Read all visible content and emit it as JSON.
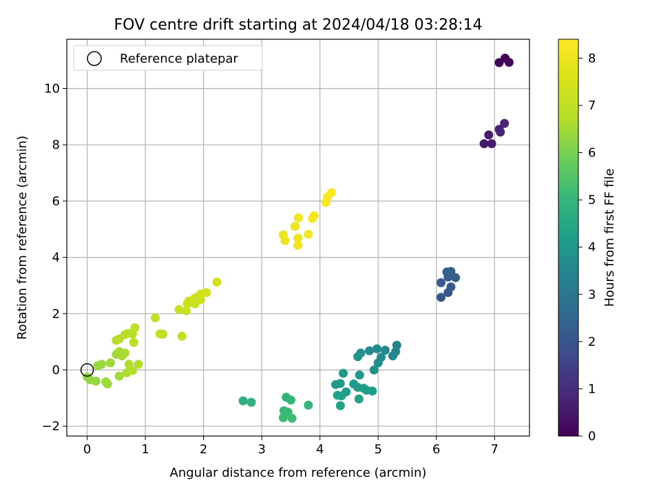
{
  "chart_data": {
    "type": "scatter",
    "title": "FOV centre drift starting at 2024/04/18 03:28:14",
    "xlabel": "Angular distance from reference (arcmin)",
    "ylabel": "Rotation from reference (arcmin)",
    "xlim": [
      -0.35,
      7.6
    ],
    "ylim": [
      -2.35,
      11.75
    ],
    "xticks": [
      0,
      1,
      2,
      3,
      4,
      5,
      6,
      7
    ],
    "yticks": [
      -2,
      0,
      2,
      4,
      6,
      8,
      10
    ],
    "grid": true,
    "legend": {
      "placement": "top-left",
      "entries": [
        "Reference platepar"
      ]
    },
    "reference_point": {
      "x": 0,
      "y": 0
    },
    "colorbar": {
      "label": "Hours from first FF file",
      "range": [
        0,
        8.4
      ],
      "ticks": [
        0,
        1,
        2,
        3,
        4,
        5,
        6,
        7,
        8
      ],
      "colormap": "viridis"
    },
    "series": [
      {
        "points": [
          {
            "x": 7.08,
            "y": 10.92,
            "t": 0.03
          },
          {
            "x": 7.18,
            "y": 11.08,
            "t": 0.05
          },
          {
            "x": 7.25,
            "y": 10.93,
            "t": 0.07
          },
          {
            "x": 6.82,
            "y": 8.04,
            "t": 0.5
          },
          {
            "x": 6.95,
            "y": 8.04,
            "t": 0.55
          },
          {
            "x": 6.9,
            "y": 8.35,
            "t": 0.6
          },
          {
            "x": 7.08,
            "y": 8.55,
            "t": 0.7
          },
          {
            "x": 7.1,
            "y": 8.45,
            "t": 0.75
          },
          {
            "x": 7.17,
            "y": 8.76,
            "t": 0.8
          },
          {
            "x": 6.08,
            "y": 2.58,
            "t": 2.0
          },
          {
            "x": 6.2,
            "y": 2.75,
            "t": 2.05
          },
          {
            "x": 6.25,
            "y": 2.95,
            "t": 2.1
          },
          {
            "x": 6.08,
            "y": 3.1,
            "t": 2.15
          },
          {
            "x": 6.2,
            "y": 3.3,
            "t": 2.2
          },
          {
            "x": 6.18,
            "y": 3.48,
            "t": 2.25
          },
          {
            "x": 6.25,
            "y": 3.5,
            "t": 2.3
          },
          {
            "x": 6.33,
            "y": 3.28,
            "t": 2.35
          },
          {
            "x": 5.32,
            "y": 0.88,
            "t": 3.4
          },
          {
            "x": 5.3,
            "y": 0.65,
            "t": 3.45
          },
          {
            "x": 5.25,
            "y": 0.5,
            "t": 3.5
          },
          {
            "x": 5.12,
            "y": 0.7,
            "t": 3.55
          },
          {
            "x": 4.98,
            "y": 0.75,
            "t": 3.6
          },
          {
            "x": 4.85,
            "y": 0.68,
            "t": 3.65
          },
          {
            "x": 5.05,
            "y": 0.45,
            "t": 3.7
          },
          {
            "x": 5.0,
            "y": 0.25,
            "t": 3.75
          },
          {
            "x": 4.93,
            "y": 0.0,
            "t": 3.8
          },
          {
            "x": 4.7,
            "y": 0.6,
            "t": 3.85
          },
          {
            "x": 4.65,
            "y": 0.47,
            "t": 3.9
          },
          {
            "x": 4.68,
            "y": -0.18,
            "t": 3.95
          },
          {
            "x": 4.4,
            "y": -0.12,
            "t": 4.0
          },
          {
            "x": 4.27,
            "y": -0.52,
            "t": 4.05
          },
          {
            "x": 4.35,
            "y": -0.48,
            "t": 4.1
          },
          {
            "x": 4.58,
            "y": -0.5,
            "t": 4.15
          },
          {
            "x": 4.65,
            "y": -0.62,
            "t": 4.15
          },
          {
            "x": 4.75,
            "y": -0.65,
            "t": 4.2
          },
          {
            "x": 4.8,
            "y": -0.72,
            "t": 4.2
          },
          {
            "x": 4.9,
            "y": -0.75,
            "t": 4.25
          },
          {
            "x": 4.45,
            "y": -0.78,
            "t": 4.25
          },
          {
            "x": 4.3,
            "y": -0.9,
            "t": 4.3
          },
          {
            "x": 4.37,
            "y": -0.92,
            "t": 4.3
          },
          {
            "x": 4.67,
            "y": -1.03,
            "t": 4.35
          },
          {
            "x": 4.35,
            "y": -1.27,
            "t": 4.4
          },
          {
            "x": 2.68,
            "y": -1.1,
            "t": 4.8
          },
          {
            "x": 2.82,
            "y": -1.15,
            "t": 4.85
          },
          {
            "x": 3.42,
            "y": -0.97,
            "t": 4.9
          },
          {
            "x": 3.5,
            "y": -1.07,
            "t": 4.95
          },
          {
            "x": 3.8,
            "y": -1.25,
            "t": 5.0
          },
          {
            "x": 3.38,
            "y": -1.45,
            "t": 5.05
          },
          {
            "x": 3.45,
            "y": -1.5,
            "t": 5.1
          },
          {
            "x": 3.37,
            "y": -1.7,
            "t": 5.15
          },
          {
            "x": 3.52,
            "y": -1.72,
            "t": 5.2
          },
          {
            "x": 0.0,
            "y": -0.25,
            "t": 6.3
          },
          {
            "x": 0.05,
            "y": -0.35,
            "t": 6.3
          },
          {
            "x": 0.15,
            "y": -0.4,
            "t": 6.35
          },
          {
            "x": 0.18,
            "y": 0.15,
            "t": 6.35
          },
          {
            "x": 0.25,
            "y": 0.2,
            "t": 6.4
          },
          {
            "x": 0.35,
            "y": -0.5,
            "t": 6.4
          },
          {
            "x": 0.32,
            "y": -0.42,
            "t": 6.45
          },
          {
            "x": 0.4,
            "y": 0.25,
            "t": 6.45
          },
          {
            "x": 0.55,
            "y": -0.22,
            "t": 6.5
          },
          {
            "x": 0.5,
            "y": 0.55,
            "t": 6.5
          },
          {
            "x": 0.55,
            "y": 0.65,
            "t": 6.55
          },
          {
            "x": 0.6,
            "y": 0.5,
            "t": 6.55
          },
          {
            "x": 0.65,
            "y": 0.6,
            "t": 6.6
          },
          {
            "x": 0.68,
            "y": -0.1,
            "t": 6.6
          },
          {
            "x": 0.72,
            "y": 0.2,
            "t": 6.65
          },
          {
            "x": 0.75,
            "y": 0.0,
            "t": 6.65
          },
          {
            "x": 0.78,
            "y": -0.02,
            "t": 6.7
          },
          {
            "x": 0.88,
            "y": 0.2,
            "t": 6.7
          },
          {
            "x": 0.5,
            "y": 1.05,
            "t": 6.75
          },
          {
            "x": 0.55,
            "y": 1.1,
            "t": 6.75
          },
          {
            "x": 0.65,
            "y": 1.25,
            "t": 6.8
          },
          {
            "x": 0.7,
            "y": 1.3,
            "t": 6.8
          },
          {
            "x": 0.78,
            "y": 1.28,
            "t": 6.85
          },
          {
            "x": 0.8,
            "y": 0.98,
            "t": 6.85
          },
          {
            "x": 0.82,
            "y": 1.5,
            "t": 6.9
          },
          {
            "x": 1.17,
            "y": 1.85,
            "t": 7.0
          },
          {
            "x": 1.25,
            "y": 1.28,
            "t": 7.05
          },
          {
            "x": 1.3,
            "y": 1.27,
            "t": 7.05
          },
          {
            "x": 1.63,
            "y": 1.2,
            "t": 7.1
          },
          {
            "x": 1.58,
            "y": 2.15,
            "t": 7.15
          },
          {
            "x": 1.7,
            "y": 2.1,
            "t": 7.2
          },
          {
            "x": 1.72,
            "y": 2.35,
            "t": 7.2
          },
          {
            "x": 1.75,
            "y": 2.45,
            "t": 7.25
          },
          {
            "x": 1.85,
            "y": 2.35,
            "t": 7.25
          },
          {
            "x": 1.85,
            "y": 2.55,
            "t": 7.3
          },
          {
            "x": 1.9,
            "y": 2.6,
            "t": 7.3
          },
          {
            "x": 1.95,
            "y": 2.7,
            "t": 7.35
          },
          {
            "x": 1.95,
            "y": 2.5,
            "t": 7.35
          },
          {
            "x": 2.05,
            "y": 2.75,
            "t": 7.4
          },
          {
            "x": 2.23,
            "y": 3.12,
            "t": 7.45
          },
          {
            "x": 3.37,
            "y": 4.8,
            "t": 8.0
          },
          {
            "x": 3.4,
            "y": 4.6,
            "t": 8.0
          },
          {
            "x": 3.57,
            "y": 5.1,
            "t": 8.05
          },
          {
            "x": 3.62,
            "y": 4.68,
            "t": 8.05
          },
          {
            "x": 3.62,
            "y": 4.43,
            "t": 8.1
          },
          {
            "x": 3.63,
            "y": 5.4,
            "t": 8.1
          },
          {
            "x": 3.8,
            "y": 4.82,
            "t": 8.15
          },
          {
            "x": 3.87,
            "y": 5.38,
            "t": 8.15
          },
          {
            "x": 3.9,
            "y": 5.48,
            "t": 8.2
          },
          {
            "x": 4.1,
            "y": 5.95,
            "t": 8.25
          },
          {
            "x": 4.13,
            "y": 6.15,
            "t": 8.3
          },
          {
            "x": 4.2,
            "y": 6.3,
            "t": 8.35
          }
        ]
      }
    ]
  }
}
